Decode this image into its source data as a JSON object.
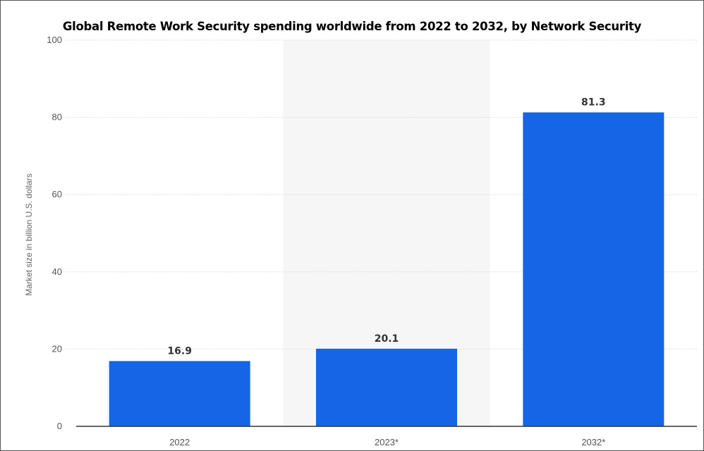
{
  "chart_data": {
    "type": "bar",
    "title": "Global Remote Work Security spending worldwide from 2022 to 2032, by Network Security",
    "xlabel": "",
    "ylabel": "Market size in billion U.S. dollars",
    "categories": [
      "2022",
      "2023*",
      "2032*"
    ],
    "values": [
      16.9,
      20.1,
      81.3
    ],
    "data_labels": [
      "16.9",
      "20.1",
      "81.3"
    ],
    "ylim": [
      0,
      100
    ],
    "yticks": [
      "0",
      "20",
      "40",
      "60",
      "80",
      "100"
    ],
    "grid": true,
    "legend": "none",
    "highlighted_category": "2023*",
    "colors": {
      "bar": "#1565e6",
      "grid": "#cccccc",
      "highlight_band": "#f6f6f6",
      "axis": "#333333"
    }
  }
}
